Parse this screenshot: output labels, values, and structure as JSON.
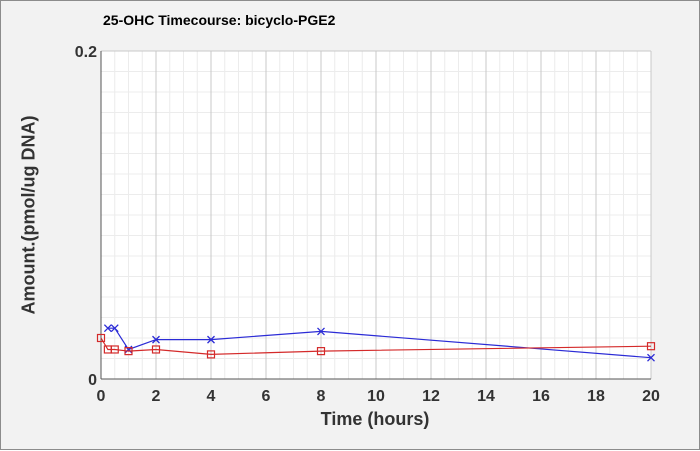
{
  "chart_data": {
    "type": "line",
    "title": "25-OHC Timecourse: bicyclo-PGE2",
    "xlabel": "Time (hours)",
    "ylabel": "Amount.(pmol/ug DNA)",
    "xlim": [
      0,
      20
    ],
    "ylim": [
      0,
      0.2
    ],
    "x_ticks": [
      0,
      2,
      4,
      6,
      8,
      10,
      12,
      14,
      16,
      18,
      20
    ],
    "y_ticks": [
      0,
      0.2
    ],
    "grid": true,
    "legend": "none",
    "series": [
      {
        "color": "#2b2bd6",
        "marker": "x",
        "x": [
          0.25,
          0.5,
          1,
          2,
          4,
          8,
          20
        ],
        "y": [
          0.031,
          0.031,
          0.018,
          0.024,
          0.024,
          0.029,
          0.013
        ]
      },
      {
        "color": "#d42a2a",
        "marker": "square",
        "x": [
          0,
          0.25,
          0.5,
          1,
          2,
          4,
          8,
          20
        ],
        "y": [
          0.025,
          0.018,
          0.018,
          0.017,
          0.018,
          0.015,
          0.017,
          0.02
        ]
      }
    ]
  }
}
